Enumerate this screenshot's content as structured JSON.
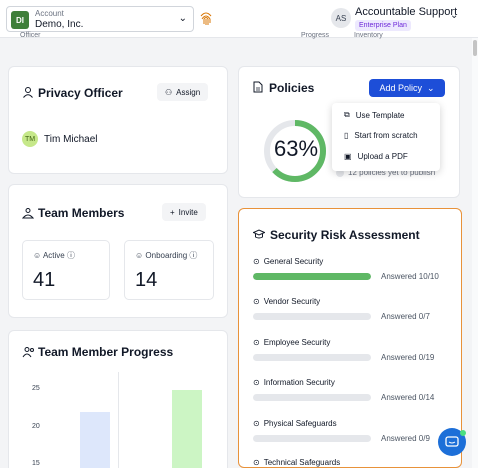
{
  "header": {
    "account_label": "Account",
    "account_name": "Demo, Inc.",
    "account_initials": "DI",
    "user_initials": "AS",
    "user_name": "Accountable Support",
    "plan": "Enterprise Plan",
    "subtabs": [
      "Officer",
      "Progress",
      "Inventory"
    ]
  },
  "privacy_officer": {
    "title": "Privacy Officer",
    "assign_label": "Assign",
    "officer_initials": "TM",
    "officer_name": "Tim Michael"
  },
  "team_members": {
    "title": "Team Members",
    "invite_label": "Invite",
    "active_label": "Active",
    "active_count": "41",
    "onboarding_label": "Onboarding",
    "onboarding_count": "14"
  },
  "policies": {
    "title": "Policies",
    "add_label": "Add Policy",
    "percent": "63%",
    "percent_value": 63,
    "pending_text": "12 policies yet to publish",
    "menu": [
      "Use Template",
      "Start from scratch",
      "Upload a PDF"
    ]
  },
  "risk_assessment": {
    "title": "Security Risk Assessment",
    "items": [
      {
        "name": "General Security",
        "answered": "Answered 10/10",
        "fraction": 1.0
      },
      {
        "name": "Vendor Security",
        "answered": "Answered 0/7",
        "fraction": 0
      },
      {
        "name": "Employee Security",
        "answered": "Answered 0/19",
        "fraction": 0
      },
      {
        "name": "Information Security",
        "answered": "Answered 0/14",
        "fraction": 0
      },
      {
        "name": "Physical Safeguards",
        "answered": "Answered 0/9",
        "fraction": 0
      },
      {
        "name": "Technical Safeguards",
        "answered": "",
        "fraction": 0
      }
    ]
  },
  "progress": {
    "title": "Team Member Progress",
    "ticks": [
      "25",
      "20",
      "15"
    ]
  },
  "colors": {
    "brand_blue": "#1d4ed8",
    "success_green": "#5fb865",
    "highlight_orange": "#e8923a"
  }
}
